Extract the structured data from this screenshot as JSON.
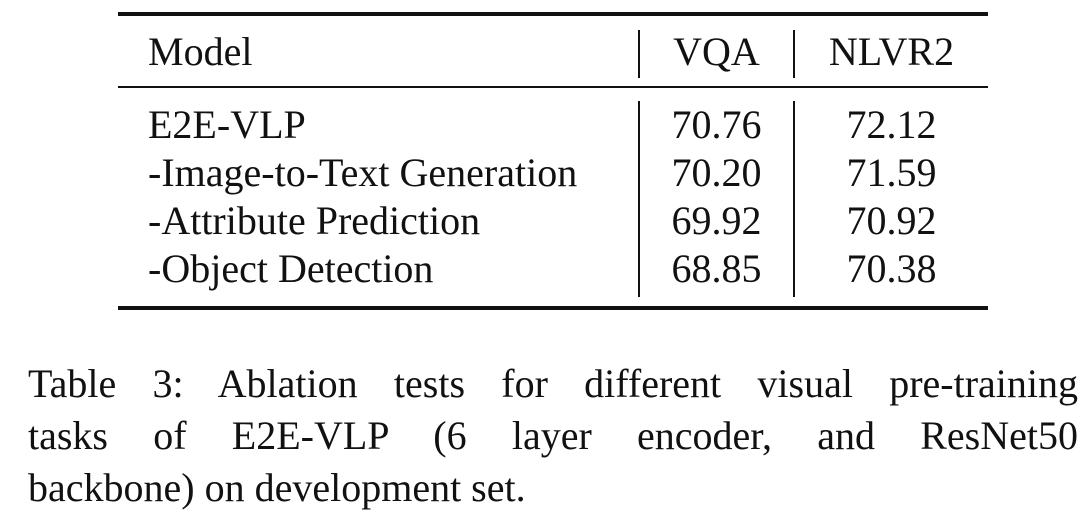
{
  "table": {
    "headers": [
      "Model",
      "VQA",
      "NLVR2"
    ],
    "rows": [
      {
        "model": "E2E-VLP",
        "vqa": "70.76",
        "nlvr2": "72.12"
      },
      {
        "model": "-Image-to-Text Generation",
        "vqa": "70.20",
        "nlvr2": "71.59"
      },
      {
        "model": "-Attribute Prediction",
        "vqa": "69.92",
        "nlvr2": "70.92"
      },
      {
        "model": "-Object Detection",
        "vqa": "68.85",
        "nlvr2": "70.38"
      }
    ]
  },
  "caption": {
    "lines": [
      "Table 3: Ablation tests for different visual pre-training",
      "tasks of E2E-VLP (6 layer encoder, and ResNet50",
      "backbone) on development set."
    ]
  }
}
